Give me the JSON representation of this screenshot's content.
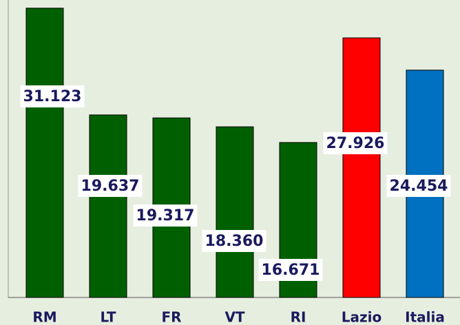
{
  "chart_data": {
    "type": "bar",
    "categories": [
      "RM",
      "LT",
      "FR",
      "VT",
      "RI",
      "Lazio",
      "Italia"
    ],
    "values": [
      31123,
      19637,
      19317,
      18360,
      16671,
      27926,
      24454
    ],
    "value_labels": [
      "31.123",
      "19.637",
      "19.317",
      "18.360",
      "16.671",
      "27.926",
      "24.454"
    ],
    "colors": [
      "#006000",
      "#006000",
      "#006000",
      "#006000",
      "#006000",
      "#ff0000",
      "#0070c0"
    ],
    "ylim": [
      0,
      32000
    ]
  }
}
